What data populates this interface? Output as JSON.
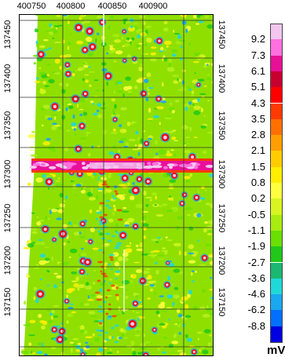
{
  "map": {
    "x_ticks": [
      "400750",
      "400800",
      "400850",
      "400900"
    ],
    "y_ticks": [
      "137450",
      "137400",
      "137350",
      "137300",
      "137250",
      "137200",
      "137150"
    ],
    "anomaly_band_color": "#e8109a"
  },
  "legend": {
    "labels": [
      "9.2",
      "7.3",
      "6.1",
      "5.1",
      "4.3",
      "3.5",
      "2.8",
      "2.1",
      "1.5",
      "0.8",
      "0.2",
      "-0.5",
      "-1.1",
      "-1.9",
      "-2.7",
      "-3.6",
      "-4.6",
      "-6.2",
      "-8.8"
    ],
    "colors": [
      "#f3c6f0",
      "#ff6fe0",
      "#e81096",
      "#c80030",
      "#ff0000",
      "#ff3a00",
      "#ff7000",
      "#ff9e00",
      "#ffcc00",
      "#ffee00",
      "#ffff40",
      "#d8f520",
      "#a8ec10",
      "#6adf00",
      "#20c81a",
      "#1ab870",
      "#20d8d8",
      "#1aa8f0",
      "#0070ff",
      "#0000e0"
    ],
    "unit": "mV"
  }
}
